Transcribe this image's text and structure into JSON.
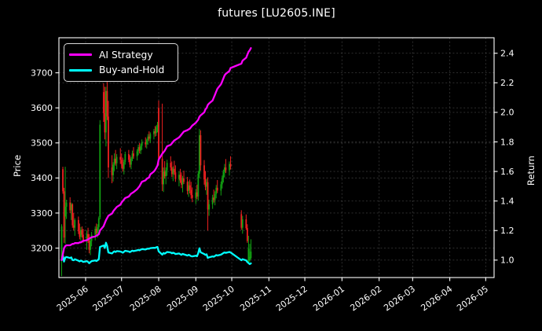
{
  "title": "futures [LU2605.INE]",
  "legend": {
    "items": [
      {
        "label": "AI Strategy",
        "color": "#ff00ff"
      },
      {
        "label": "Buy-and-Hold",
        "color": "#00ffff"
      }
    ]
  },
  "colors": {
    "background": "#000000",
    "text": "#ffffff",
    "spine": "#ffffff",
    "grid": "#666666",
    "candle_up": "#12a112",
    "candle_down": "#ef2020",
    "ai_line": "#ff00ff",
    "bh_line": "#00ffff"
  },
  "chart_data": {
    "type": "candlestick+line",
    "title": "futures [LU2605.INE]",
    "grid": true,
    "legend_position": "upper-left",
    "left_axis": {
      "label": "Price",
      "ticks": [
        3200,
        3300,
        3400,
        3500,
        3600,
        3700
      ],
      "lim": [
        3116,
        3800
      ]
    },
    "right_axis": {
      "label": "Return",
      "ticks": [
        1.0,
        1.2,
        1.4,
        1.6,
        1.8,
        2.0,
        2.2,
        2.4
      ],
      "lim": [
        0.882,
        2.505
      ]
    },
    "x_axis": {
      "tick_labels": [
        "2025-06",
        "2025-07",
        "2025-08",
        "2025-09",
        "2025-10",
        "2025-11",
        "2025-12",
        "2026-01",
        "2026-02",
        "2026-03",
        "2026-04",
        "2026-05"
      ],
      "tick_dates": [
        "2025-06-01",
        "2025-07-01",
        "2025-08-01",
        "2025-09-01",
        "2025-10-01",
        "2025-11-01",
        "2025-12-01",
        "2026-01-01",
        "2026-02-01",
        "2026-03-01",
        "2026-04-01",
        "2026-05-01"
      ],
      "lim": [
        "2025-05-09",
        "2026-05-08"
      ]
    },
    "dates": [
      "2025-05-12",
      "2025-05-13",
      "2025-05-14",
      "2025-05-15",
      "2025-05-16",
      "2025-05-19",
      "2025-05-20",
      "2025-05-21",
      "2025-05-22",
      "2025-05-23",
      "2025-05-26",
      "2025-05-27",
      "2025-05-28",
      "2025-05-29",
      "2025-05-30",
      "2025-06-02",
      "2025-06-03",
      "2025-06-04",
      "2025-06-05",
      "2025-06-06",
      "2025-06-09",
      "2025-06-10",
      "2025-06-11",
      "2025-06-12",
      "2025-06-13",
      "2025-06-16",
      "2025-06-17",
      "2025-06-18",
      "2025-06-19",
      "2025-06-20",
      "2025-06-23",
      "2025-06-24",
      "2025-06-25",
      "2025-06-26",
      "2025-06-27",
      "2025-06-30",
      "2025-07-01",
      "2025-07-02",
      "2025-07-03",
      "2025-07-04",
      "2025-07-07",
      "2025-07-08",
      "2025-07-09",
      "2025-07-10",
      "2025-07-11",
      "2025-07-14",
      "2025-07-15",
      "2025-07-16",
      "2025-07-17",
      "2025-07-18",
      "2025-07-21",
      "2025-07-22",
      "2025-07-23",
      "2025-07-24",
      "2025-07-25",
      "2025-07-28",
      "2025-07-29",
      "2025-07-30",
      "2025-07-31",
      "2025-08-01",
      "2025-08-04",
      "2025-08-05",
      "2025-08-06",
      "2025-08-07",
      "2025-08-08",
      "2025-08-11",
      "2025-08-12",
      "2025-08-13",
      "2025-08-14",
      "2025-08-15",
      "2025-08-18",
      "2025-08-19",
      "2025-08-20",
      "2025-08-21",
      "2025-08-22",
      "2025-08-25",
      "2025-08-26",
      "2025-08-27",
      "2025-08-28",
      "2025-08-29",
      "2025-09-01",
      "2025-09-02",
      "2025-09-03",
      "2025-09-04",
      "2025-09-05",
      "2025-09-08",
      "2025-09-09",
      "2025-09-10",
      "2025-09-11",
      "2025-09-12",
      "2025-09-15",
      "2025-09-16",
      "2025-09-17",
      "2025-09-18",
      "2025-09-19",
      "2025-09-22",
      "2025-09-23",
      "2025-09-24",
      "2025-09-25",
      "2025-09-26",
      "2025-09-29",
      "2025-09-30",
      "2025-10-09",
      "2025-10-10",
      "2025-10-13",
      "2025-10-14",
      "2025-10-15",
      "2025-10-16",
      "2025-10-17"
    ],
    "ohlc": [
      [
        3170,
        3268,
        3120,
        3262
      ],
      [
        3425,
        3432,
        3355,
        3362
      ],
      [
        3362,
        3372,
        3215,
        3230
      ],
      [
        3290,
        3432,
        3212,
        3318
      ],
      [
        3318,
        3338,
        3283,
        3330
      ],
      [
        3330,
        3345,
        3300,
        3308
      ],
      [
        3308,
        3330,
        3280,
        3325
      ],
      [
        3325,
        3328,
        3258,
        3265
      ],
      [
        3265,
        3300,
        3250,
        3258
      ],
      [
        3258,
        3285,
        3235,
        3280
      ],
      [
        3280,
        3290,
        3240,
        3248
      ],
      [
        3248,
        3270,
        3225,
        3232
      ],
      [
        3232,
        3260,
        3220,
        3252
      ],
      [
        3252,
        3262,
        3230,
        3238
      ],
      [
        3238,
        3255,
        3215,
        3222
      ],
      [
        3222,
        3250,
        3195,
        3240
      ],
      [
        3240,
        3258,
        3215,
        3222
      ],
      [
        3222,
        3240,
        3185,
        3195
      ],
      [
        3195,
        3228,
        3180,
        3220
      ],
      [
        3220,
        3246,
        3205,
        3238
      ],
      [
        3238,
        3262,
        3222,
        3255
      ],
      [
        3255,
        3270,
        3235,
        3242
      ],
      [
        3242,
        3268,
        3230,
        3260
      ],
      [
        3260,
        3290,
        3248,
        3285
      ],
      [
        3288,
        3565,
        3282,
        3552
      ],
      [
        3645,
        3670,
        3560,
        3585
      ],
      [
        3585,
        3660,
        3510,
        3530
      ],
      [
        3530,
        3660,
        3490,
        3648
      ],
      [
        3648,
        3674,
        3565,
        3575
      ],
      [
        3575,
        3620,
        3400,
        3430
      ],
      [
        3430,
        3465,
        3385,
        3408
      ],
      [
        3408,
        3445,
        3390,
        3438
      ],
      [
        3438,
        3470,
        3420,
        3455
      ],
      [
        3455,
        3480,
        3435,
        3442
      ],
      [
        3442,
        3468,
        3425,
        3460
      ],
      [
        3460,
        3485,
        3440,
        3452
      ],
      [
        3452,
        3470,
        3428,
        3440
      ],
      [
        3440,
        3458,
        3418,
        3426
      ],
      [
        3426,
        3452,
        3410,
        3446
      ],
      [
        3446,
        3475,
        3438,
        3468
      ],
      [
        3468,
        3480,
        3445,
        3452
      ],
      [
        3452,
        3465,
        3430,
        3438
      ],
      [
        3438,
        3460,
        3425,
        3455
      ],
      [
        3455,
        3478,
        3448,
        3470
      ],
      [
        3470,
        3488,
        3455,
        3462
      ],
      [
        3462,
        3482,
        3450,
        3476
      ],
      [
        3476,
        3495,
        3465,
        3488
      ],
      [
        3488,
        3500,
        3470,
        3478
      ],
      [
        3478,
        3498,
        3468,
        3492
      ],
      [
        3492,
        3510,
        3480,
        3502
      ],
      [
        3502,
        3516,
        3487,
        3496
      ],
      [
        3496,
        3512,
        3484,
        3508
      ],
      [
        3508,
        3525,
        3495,
        3518
      ],
      [
        3518,
        3533,
        3505,
        3512
      ],
      [
        3512,
        3530,
        3500,
        3525
      ],
      [
        3525,
        3540,
        3510,
        3533
      ],
      [
        3533,
        3548,
        3518,
        3528
      ],
      [
        3528,
        3550,
        3520,
        3545
      ],
      [
        3545,
        3560,
        3530,
        3552
      ],
      [
        3600,
        3621,
        3437,
        3455
      ],
      [
        3455,
        3612,
        3363,
        3382
      ],
      [
        3382,
        3430,
        3360,
        3418
      ],
      [
        3418,
        3448,
        3398,
        3405
      ],
      [
        3405,
        3430,
        3382,
        3422
      ],
      [
        3422,
        3452,
        3406,
        3443
      ],
      [
        3443,
        3462,
        3421,
        3430
      ],
      [
        3430,
        3447,
        3403,
        3411
      ],
      [
        3411,
        3433,
        3391,
        3426
      ],
      [
        3426,
        3449,
        3409,
        3416
      ],
      [
        3416,
        3436,
        3389,
        3397
      ],
      [
        3397,
        3419,
        3376,
        3409
      ],
      [
        3409,
        3426,
        3386,
        3393
      ],
      [
        3393,
        3416,
        3371,
        3381
      ],
      [
        3381,
        3406,
        3359,
        3399
      ],
      [
        3399,
        3421,
        3383,
        3389
      ],
      [
        3389,
        3403,
        3353,
        3363
      ],
      [
        3363,
        3391,
        3346,
        3379
      ],
      [
        3379,
        3396,
        3356,
        3366
      ],
      [
        3366,
        3389,
        3341,
        3351
      ],
      [
        3351,
        3373,
        3331,
        3343
      ],
      [
        3343,
        3369,
        3326,
        3359
      ],
      [
        3359,
        3381,
        3339,
        3347
      ],
      [
        3347,
        3420,
        3335,
        3412
      ],
      [
        3412,
        3540,
        3400,
        3522
      ],
      [
        3522,
        3536,
        3421,
        3436
      ],
      [
        3436,
        3451,
        3381,
        3396
      ],
      [
        3396,
        3420,
        3365,
        3375
      ],
      [
        3375,
        3398,
        3352,
        3388
      ],
      [
        3388,
        3402,
        3250,
        3310
      ],
      [
        3310,
        3338,
        3292,
        3325
      ],
      [
        3325,
        3352,
        3312,
        3344
      ],
      [
        3344,
        3367,
        3330,
        3337
      ],
      [
        3337,
        3362,
        3322,
        3354
      ],
      [
        3354,
        3380,
        3342,
        3372
      ],
      [
        3372,
        3394,
        3357,
        3364
      ],
      [
        3364,
        3390,
        3350,
        3382
      ],
      [
        3382,
        3407,
        3370,
        3400
      ],
      [
        3400,
        3424,
        3387,
        3417
      ],
      [
        3417,
        3440,
        3402,
        3430
      ],
      [
        3430,
        3454,
        3414,
        3422
      ],
      [
        3422,
        3447,
        3407,
        3440
      ],
      [
        3440,
        3462,
        3424,
        3432
      ],
      [
        3297,
        3308,
        3252,
        3258
      ],
      [
        3258,
        3292,
        3241,
        3282
      ],
      [
        3282,
        3296,
        3252,
        3257
      ],
      [
        3257,
        3268,
        3215,
        3220
      ],
      [
        3162,
        3235,
        3158,
        3198
      ],
      [
        3165,
        3212,
        3160,
        3175
      ],
      [
        3172,
        3225,
        3168,
        3190
      ]
    ],
    "series": [
      {
        "name": "AI Strategy",
        "axis": "right",
        "color": "#ff00ff",
        "values": [
          1.0,
          1.04,
          1.08,
          1.095,
          1.1,
          1.1,
          1.105,
          1.11,
          1.11,
          1.115,
          1.115,
          1.12,
          1.12,
          1.125,
          1.13,
          1.135,
          1.14,
          1.145,
          1.15,
          1.155,
          1.16,
          1.165,
          1.17,
          1.175,
          1.2,
          1.23,
          1.25,
          1.27,
          1.285,
          1.3,
          1.315,
          1.33,
          1.34,
          1.35,
          1.36,
          1.375,
          1.39,
          1.4,
          1.41,
          1.42,
          1.43,
          1.44,
          1.45,
          1.455,
          1.46,
          1.48,
          1.49,
          1.5,
          1.515,
          1.53,
          1.54,
          1.55,
          1.555,
          1.56,
          1.58,
          1.6,
          1.61,
          1.625,
          1.64,
          1.68,
          1.72,
          1.73,
          1.74,
          1.755,
          1.77,
          1.78,
          1.79,
          1.8,
          1.81,
          1.815,
          1.83,
          1.84,
          1.85,
          1.86,
          1.87,
          1.88,
          1.885,
          1.89,
          1.9,
          1.91,
          1.93,
          1.94,
          1.95,
          1.97,
          1.98,
          2.0,
          2.02,
          2.03,
          2.05,
          2.06,
          2.08,
          2.1,
          2.12,
          2.14,
          2.16,
          2.19,
          2.21,
          2.23,
          2.25,
          2.26,
          2.28,
          2.3,
          2.33,
          2.35,
          2.37,
          2.39,
          2.41,
          2.42,
          2.435
        ]
      },
      {
        "name": "Buy-and-Hold",
        "axis": "right",
        "color": "#00ffff",
        "values": [
          1.0,
          1.031,
          0.99,
          1.017,
          1.021,
          1.014,
          1.019,
          1.001,
          0.999,
          1.006,
          0.996,
          0.991,
          0.997,
          0.993,
          0.988,
          0.993,
          0.988,
          0.979,
          0.987,
          0.993,
          0.998,
          0.994,
          0.999,
          1.007,
          1.089,
          1.099,
          1.082,
          1.118,
          1.096,
          1.052,
          1.045,
          1.054,
          1.059,
          1.055,
          1.061,
          1.058,
          1.055,
          1.05,
          1.056,
          1.063,
          1.058,
          1.054,
          1.059,
          1.064,
          1.061,
          1.066,
          1.069,
          1.066,
          1.071,
          1.074,
          1.072,
          1.075,
          1.078,
          1.077,
          1.081,
          1.083,
          1.082,
          1.087,
          1.089,
          1.059,
          1.037,
          1.048,
          1.044,
          1.049,
          1.055,
          1.052,
          1.046,
          1.05,
          1.047,
          1.041,
          1.045,
          1.04,
          1.036,
          1.042,
          1.039,
          1.031,
          1.036,
          1.032,
          1.027,
          1.025,
          1.03,
          1.026,
          1.046,
          1.08,
          1.053,
          1.041,
          1.035,
          1.039,
          1.015,
          1.019,
          1.025,
          1.023,
          1.028,
          1.034,
          1.031,
          1.037,
          1.042,
          1.048,
          1.052,
          1.049,
          1.055,
          1.052,
          0.999,
          1.006,
          0.998,
          0.987,
          0.98,
          0.973,
          0.978
        ]
      }
    ]
  }
}
